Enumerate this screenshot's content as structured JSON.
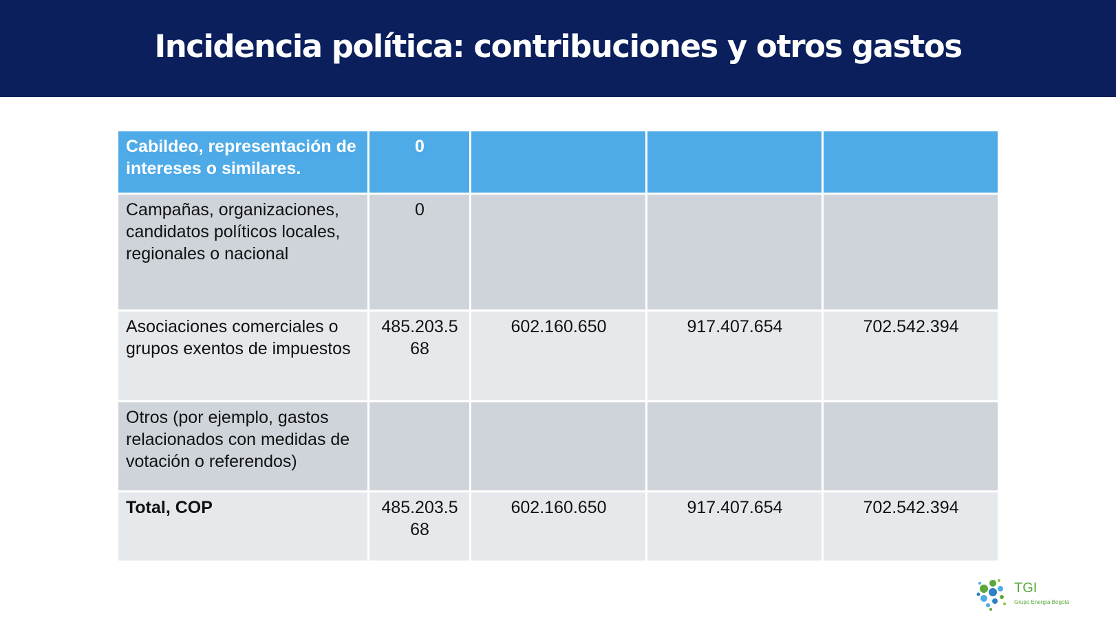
{
  "title": "Incidencia política: contribuciones y otros gastos",
  "table": {
    "rows": [
      {
        "label": "Cabildeo, representación de intereses o similares.",
        "values": [
          "0",
          "",
          "",
          ""
        ]
      },
      {
        "label": "Campañas, organizaciones, candidatos políticos locales, regionales o nacional",
        "values": [
          "0",
          "",
          "",
          ""
        ]
      },
      {
        "label": "Asociaciones comerciales o grupos exentos de impuestos",
        "values": [
          "485.203.568",
          "602.160.650",
          "917.407.654",
          "702.542.394"
        ]
      },
      {
        "label": "Otros (por ejemplo, gastos relacionados con medidas de votación o referendos)",
        "values": [
          "",
          "",
          "",
          ""
        ]
      },
      {
        "label": "Total, COP",
        "values": [
          "485.203.568",
          "602.160.650",
          "917.407.654",
          "702.542.394"
        ]
      }
    ]
  },
  "logo": {
    "name": "TGI",
    "subtitle": "Grupo Energía Bogotá"
  },
  "colors": {
    "title_bar": "#0b1f5c",
    "header_row": "#4eabe8",
    "band_dark": "#cfd4db",
    "band_light": "#e6e9ec",
    "logo_green": "#5aa83c"
  }
}
